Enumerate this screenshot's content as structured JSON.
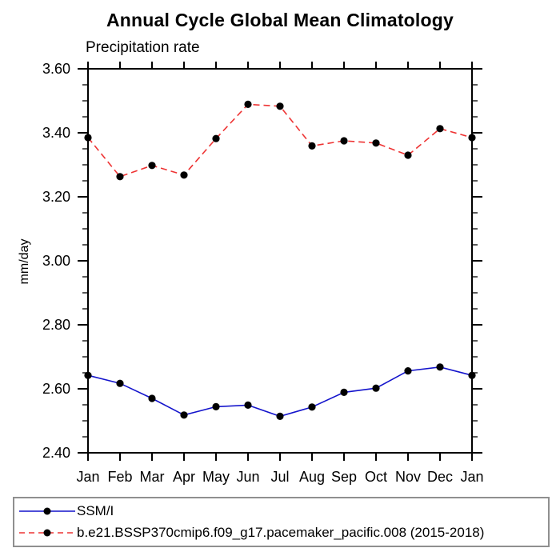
{
  "chart_data": {
    "type": "line",
    "title": "Annual Cycle Global Mean Climatology",
    "subtitle": "Precipitation rate",
    "xlabel": "",
    "ylabel": "mm/day",
    "categories": [
      "Jan",
      "Feb",
      "Mar",
      "Apr",
      "May",
      "Jun",
      "Jul",
      "Aug",
      "Sep",
      "Oct",
      "Nov",
      "Dec",
      "Jan"
    ],
    "ylim": [
      2.4,
      3.6
    ],
    "ytick_major_step": 0.2,
    "ytick_minor_step": 0.05,
    "ytick_label_format": "2dp",
    "grid": false,
    "legend_position": "bottom-left-box",
    "marker": "filled-circle",
    "marker_color": "#000000",
    "axis_color": "#000000",
    "legend_border_color": "#8f8f8f",
    "series": [
      {
        "name": "SSM/I",
        "color": "#1414cc",
        "style": "solid",
        "values": [
          2.642,
          2.617,
          2.57,
          2.518,
          2.544,
          2.549,
          2.514,
          2.543,
          2.589,
          2.602,
          2.656,
          2.668,
          2.642
        ]
      },
      {
        "name": "b.e21.BSSP370cmip6.f09_g17.pacemaker_pacific.008 (2015-2018)",
        "color": "#ee3333",
        "style": "dashed",
        "values": [
          3.385,
          3.263,
          3.298,
          3.268,
          3.382,
          3.489,
          3.483,
          3.359,
          3.375,
          3.368,
          3.33,
          3.413,
          3.385
        ]
      }
    ]
  }
}
